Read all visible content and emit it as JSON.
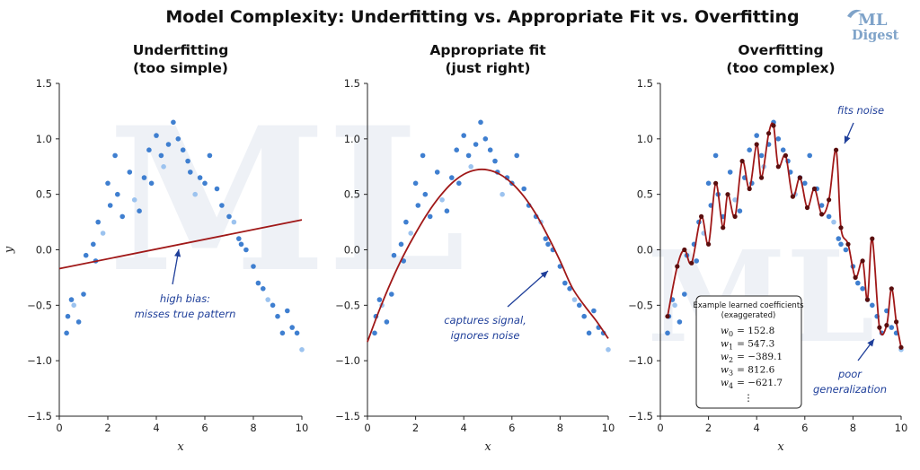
{
  "figure": {
    "title": "Model Complexity: Underfitting vs. Appropriate Fit vs. Overfitting",
    "logo": {
      "line1": "ML",
      "line2": "Digest"
    },
    "colors": {
      "points": "#3f7fd0",
      "points_light": "#9cc3ef",
      "fit": "#a01818",
      "knot": "#5a0e0e",
      "annotation": "#1f3f9a"
    }
  },
  "chart_data": [
    {
      "type": "scatter",
      "title": "Underfitting\n(too simple)",
      "xlabel": "x",
      "ylabel": "y",
      "xlim": [
        0,
        10
      ],
      "ylim": [
        -1.5,
        1.5
      ],
      "xticks": [
        "0",
        "2",
        "4",
        "6",
        "8",
        "10"
      ],
      "yticks": [
        "1.5",
        "1.0",
        "0.5",
        "0.0",
        "−0.5",
        "−1.0",
        "−1.5"
      ],
      "grid": false,
      "series": [
        {
          "x": [
            0.3,
            0.35,
            0.5,
            0.6,
            0.8,
            1.0,
            1.1,
            1.4,
            1.5,
            1.6,
            1.8,
            2.0,
            2.1,
            2.3,
            2.4,
            2.6,
            2.9,
            3.1,
            3.3,
            3.5,
            3.7,
            3.8,
            4.0,
            4.2,
            4.3,
            4.5,
            4.7,
            4.9,
            5.1,
            5.3,
            5.4,
            5.6,
            5.8,
            6.0,
            6.2,
            6.5,
            6.7,
            7.0,
            7.2,
            7.4,
            7.5,
            7.7,
            8.0,
            8.2,
            8.4,
            8.6,
            8.8,
            9.0,
            9.2,
            9.4,
            9.6,
            9.8,
            10.0
          ],
          "y": [
            -0.75,
            -0.6,
            -0.45,
            -0.5,
            -0.65,
            -0.4,
            -0.05,
            0.05,
            -0.1,
            0.25,
            0.15,
            0.6,
            0.4,
            0.85,
            0.5,
            0.3,
            0.7,
            0.45,
            0.35,
            0.65,
            0.9,
            0.6,
            1.03,
            0.85,
            0.75,
            0.95,
            1.15,
            1.0,
            0.9,
            0.8,
            0.7,
            0.5,
            0.65,
            0.6,
            0.85,
            0.55,
            0.4,
            0.3,
            0.25,
            0.1,
            0.05,
            0.0,
            -0.15,
            -0.3,
            -0.35,
            -0.45,
            -0.5,
            -0.6,
            -0.75,
            -0.55,
            -0.7,
            -0.75,
            -0.9
          ]
        },
        {
          "name": "fit",
          "x": [
            0,
            10
          ],
          "y": [
            -0.17,
            0.27
          ]
        }
      ],
      "annotations": [
        {
          "text": "high bias:\nmisses true pattern"
        }
      ]
    },
    {
      "type": "scatter",
      "title": "Appropriate fit\n(just right)",
      "xlabel": "x",
      "xlim": [
        0,
        10
      ],
      "ylim": [
        -1.5,
        1.5
      ],
      "xticks": [
        "0",
        "2",
        "4",
        "6",
        "8",
        "10"
      ],
      "yticks": [
        "1.5",
        "1.0",
        "0.5",
        "0.0",
        "−0.5",
        "−1.0",
        "−1.5"
      ],
      "grid": false,
      "series": [
        {
          "x": [
            0.3,
            0.35,
            0.5,
            0.6,
            0.8,
            1.0,
            1.1,
            1.4,
            1.5,
            1.6,
            1.8,
            2.0,
            2.1,
            2.3,
            2.4,
            2.6,
            2.9,
            3.1,
            3.3,
            3.5,
            3.7,
            3.8,
            4.0,
            4.2,
            4.3,
            4.5,
            4.7,
            4.9,
            5.1,
            5.3,
            5.4,
            5.6,
            5.8,
            6.0,
            6.2,
            6.5,
            6.7,
            7.0,
            7.2,
            7.4,
            7.5,
            7.7,
            8.0,
            8.2,
            8.4,
            8.6,
            8.8,
            9.0,
            9.2,
            9.4,
            9.6,
            9.8,
            10.0
          ],
          "y": [
            -0.75,
            -0.6,
            -0.45,
            -0.5,
            -0.65,
            -0.4,
            -0.05,
            0.05,
            -0.1,
            0.25,
            0.15,
            0.6,
            0.4,
            0.85,
            0.5,
            0.3,
            0.7,
            0.45,
            0.35,
            0.65,
            0.9,
            0.6,
            1.03,
            0.85,
            0.75,
            0.95,
            1.15,
            1.0,
            0.9,
            0.8,
            0.7,
            0.5,
            0.65,
            0.6,
            0.85,
            0.55,
            0.4,
            0.3,
            0.25,
            0.1,
            0.05,
            0.0,
            -0.15,
            -0.3,
            -0.35,
            -0.45,
            -0.5,
            -0.6,
            -0.75,
            -0.55,
            -0.7,
            -0.75,
            -0.9
          ]
        },
        {
          "name": "fit",
          "x": [
            0,
            0.5,
            1,
            1.5,
            2,
            2.5,
            3,
            3.5,
            4,
            4.5,
            5,
            5.5,
            6,
            6.5,
            7,
            7.5,
            8,
            8.5,
            9,
            9.5,
            10
          ],
          "y": [
            -0.83,
            -0.54,
            -0.28,
            -0.05,
            0.15,
            0.33,
            0.48,
            0.6,
            0.68,
            0.72,
            0.72,
            0.68,
            0.6,
            0.48,
            0.32,
            0.12,
            -0.1,
            -0.34,
            -0.5,
            -0.64,
            -0.8
          ]
        }
      ],
      "annotations": [
        {
          "text": "captures signal,\nignores noise"
        }
      ]
    },
    {
      "type": "scatter",
      "title": "Overfitting\n(too complex)",
      "xlabel": "x",
      "xlim": [
        0,
        10
      ],
      "ylim": [
        -1.5,
        1.5
      ],
      "xticks": [
        "0",
        "2",
        "4",
        "6",
        "8",
        "10"
      ],
      "yticks": [
        "1.5",
        "1.0",
        "0.5",
        "0.0",
        "−0.5",
        "−1.0",
        "−1.5"
      ],
      "grid": false,
      "series": [
        {
          "x": [
            0.3,
            0.35,
            0.5,
            0.6,
            0.8,
            1.0,
            1.1,
            1.4,
            1.5,
            1.6,
            1.8,
            2.0,
            2.1,
            2.3,
            2.4,
            2.6,
            2.9,
            3.1,
            3.3,
            3.5,
            3.7,
            3.8,
            4.0,
            4.2,
            4.3,
            4.5,
            4.7,
            4.9,
            5.1,
            5.3,
            5.4,
            5.6,
            5.8,
            6.0,
            6.2,
            6.5,
            6.7,
            7.0,
            7.2,
            7.4,
            7.5,
            7.7,
            8.0,
            8.2,
            8.4,
            8.6,
            8.8,
            9.0,
            9.2,
            9.4,
            9.6,
            9.8,
            10.0
          ],
          "y": [
            -0.75,
            -0.6,
            -0.45,
            -0.5,
            -0.65,
            -0.4,
            -0.05,
            0.05,
            -0.1,
            0.25,
            0.15,
            0.6,
            0.4,
            0.85,
            0.5,
            0.3,
            0.7,
            0.45,
            0.35,
            0.65,
            0.9,
            0.6,
            1.03,
            0.85,
            0.75,
            0.95,
            1.15,
            1.0,
            0.9,
            0.8,
            0.7,
            0.5,
            0.65,
            0.6,
            0.85,
            0.55,
            0.4,
            0.3,
            0.25,
            0.1,
            0.05,
            0.0,
            -0.15,
            -0.3,
            -0.35,
            -0.45,
            -0.5,
            -0.6,
            -0.75,
            -0.55,
            -0.7,
            -0.75,
            -0.9
          ]
        },
        {
          "name": "fit",
          "x": [
            0.3,
            0.7,
            1.0,
            1.3,
            1.7,
            2.0,
            2.3,
            2.6,
            2.8,
            3.1,
            3.4,
            3.7,
            4.0,
            4.2,
            4.5,
            4.7,
            4.9,
            5.2,
            5.5,
            5.8,
            6.1,
            6.4,
            6.7,
            7.0,
            7.3,
            7.5,
            7.8,
            8.1,
            8.4,
            8.6,
            8.8,
            9.1,
            9.4,
            9.6,
            9.8,
            10.0
          ],
          "y": [
            -0.6,
            -0.15,
            0.0,
            -0.12,
            0.3,
            0.05,
            0.6,
            0.2,
            0.5,
            0.3,
            0.8,
            0.55,
            0.95,
            0.65,
            1.05,
            1.12,
            0.75,
            0.85,
            0.48,
            0.65,
            0.38,
            0.55,
            0.32,
            0.45,
            0.9,
            0.2,
            0.05,
            -0.25,
            -0.1,
            -0.45,
            0.1,
            -0.7,
            -0.68,
            -0.35,
            -0.65,
            -0.88
          ]
        }
      ],
      "annotations": [
        {
          "text": "fits noise"
        },
        {
          "text": "poor\ngeneralization"
        }
      ],
      "coefficients": {
        "title": "Example learned coefficients\n(exaggerated)",
        "items": [
          {
            "sym": "w",
            "sub": "0",
            "value": "= 152.8"
          },
          {
            "sym": "w",
            "sub": "1",
            "value": "= 547.3"
          },
          {
            "sym": "w",
            "sub": "2",
            "value": "= −389.1"
          },
          {
            "sym": "w",
            "sub": "3",
            "value": "= 812.6"
          },
          {
            "sym": "w",
            "sub": "4",
            "value": "= −621.7"
          }
        ],
        "more": "⋮"
      }
    }
  ]
}
